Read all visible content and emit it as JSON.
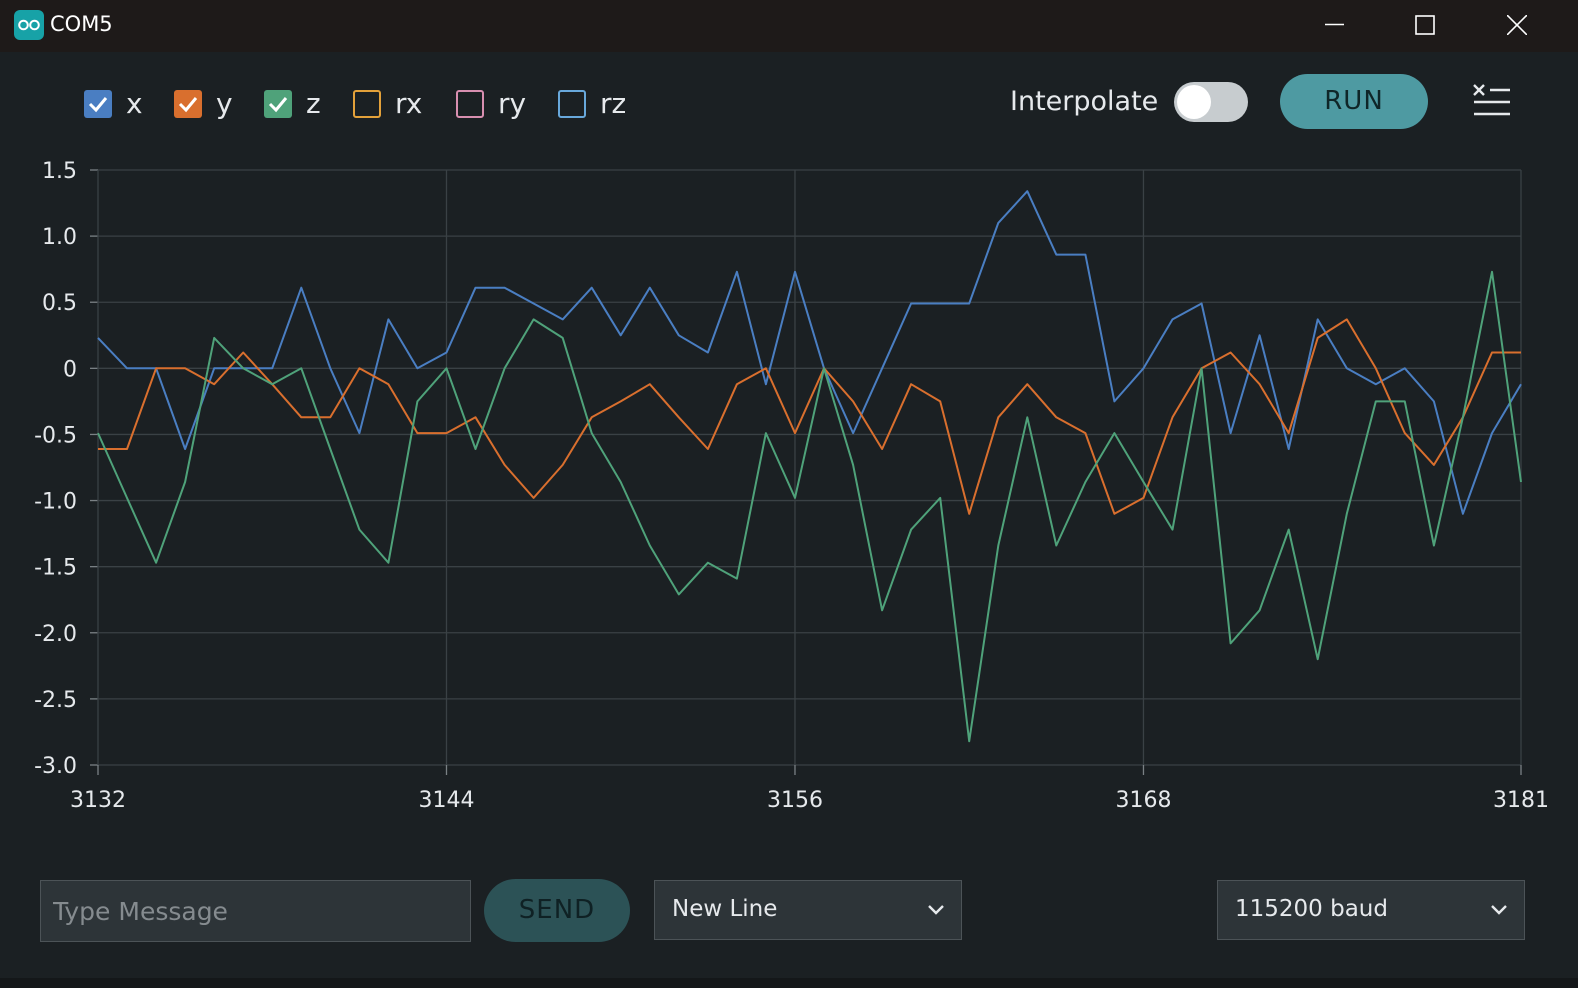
{
  "window": {
    "title": "COM5"
  },
  "toolbar": {
    "legend": [
      {
        "label": "x",
        "checked": true,
        "color": "#4a7ec2"
      },
      {
        "label": "y",
        "checked": true,
        "color": "#d96f2e"
      },
      {
        "label": "z",
        "checked": true,
        "color": "#4fa27a"
      },
      {
        "label": "rx",
        "checked": false,
        "color": "#e3a13a"
      },
      {
        "label": "ry",
        "checked": false,
        "color": "#d88fb0"
      },
      {
        "label": "rz",
        "checked": false,
        "color": "#68a8db"
      }
    ],
    "interpolate_label": "Interpolate",
    "interpolate_on": false,
    "run_label": "RUN",
    "clear_icon": "clear-list-icon"
  },
  "chart_data": {
    "type": "line",
    "x": [
      3132,
      3133,
      3134,
      3135,
      3136,
      3137,
      3138,
      3139,
      3140,
      3141,
      3142,
      3143,
      3144,
      3145,
      3146,
      3147,
      3148,
      3149,
      3150,
      3151,
      3152,
      3153,
      3154,
      3155,
      3156,
      3157,
      3158,
      3159,
      3160,
      3161,
      3162,
      3163,
      3164,
      3165,
      3166,
      3167,
      3168,
      3169,
      3170,
      3171,
      3172,
      3173,
      3174,
      3175,
      3176,
      3177,
      3178,
      3179,
      3180,
      3181
    ],
    "xticks": [
      "3132",
      "3144",
      "3156",
      "3168",
      "3181"
    ],
    "yticks": [
      "1.5",
      "1.0",
      "0.5",
      "0",
      "-0.5",
      "-1.0",
      "-1.5",
      "-2.0",
      "-2.5",
      "-3.0"
    ],
    "ylim": [
      -3.0,
      1.5
    ],
    "grid": true,
    "series": [
      {
        "name": "x",
        "color": "#4a7ec2",
        "values": [
          0.23,
          0,
          0,
          -0.61,
          0,
          0,
          0,
          0.61,
          0,
          -0.49,
          0.37,
          0,
          0.12,
          0.61,
          0.61,
          0.49,
          0.37,
          0.61,
          0.25,
          0.61,
          0.25,
          0.12,
          0.73,
          -0.12,
          0.73,
          0,
          -0.49,
          0,
          0.49,
          0.49,
          0.49,
          1.1,
          1.34,
          0.86,
          0.86,
          -0.25,
          0,
          0.37,
          0.49,
          -0.49,
          0.25,
          -0.61,
          0.37,
          0,
          -0.12,
          0,
          -0.25,
          -1.1,
          -0.49,
          -0.12
        ]
      },
      {
        "name": "y",
        "color": "#d96f2e",
        "values": [
          -0.61,
          -0.61,
          0,
          0,
          -0.12,
          0.12,
          -0.12,
          -0.37,
          -0.37,
          0,
          -0.12,
          -0.49,
          -0.49,
          -0.37,
          -0.73,
          -0.98,
          -0.73,
          -0.37,
          -0.25,
          -0.12,
          -0.37,
          -0.61,
          -0.12,
          0,
          -0.49,
          0,
          -0.25,
          -0.61,
          -0.12,
          -0.25,
          -1.1,
          -0.37,
          -0.12,
          -0.37,
          -0.49,
          -1.1,
          -0.98,
          -0.37,
          0,
          0.12,
          -0.12,
          -0.49,
          0.23,
          0.37,
          0,
          -0.49,
          -0.73,
          -0.37,
          0.12,
          0.12
        ]
      },
      {
        "name": "z",
        "color": "#4fa27a",
        "values": [
          -0.49,
          -0.98,
          -1.47,
          -0.86,
          0.23,
          0,
          -0.12,
          0,
          -0.61,
          -1.22,
          -1.47,
          -0.25,
          0,
          -0.61,
          0,
          0.37,
          0.23,
          -0.49,
          -0.86,
          -1.34,
          -1.71,
          -1.47,
          -1.59,
          -0.49,
          -0.98,
          0,
          -0.73,
          -1.83,
          -1.22,
          -0.98,
          -2.82,
          -1.34,
          -0.37,
          -1.34,
          -0.86,
          -0.49,
          -0.86,
          -1.22,
          0,
          -2.08,
          -1.83,
          -1.22,
          -2.2,
          -1.1,
          -0.25,
          -0.25,
          -1.34,
          -0.37,
          0.73,
          -0.86
        ]
      }
    ]
  },
  "footer": {
    "message_placeholder": "Type Message",
    "send_label": "SEND",
    "line_ending": "New Line",
    "baud_rate": "115200 baud"
  }
}
